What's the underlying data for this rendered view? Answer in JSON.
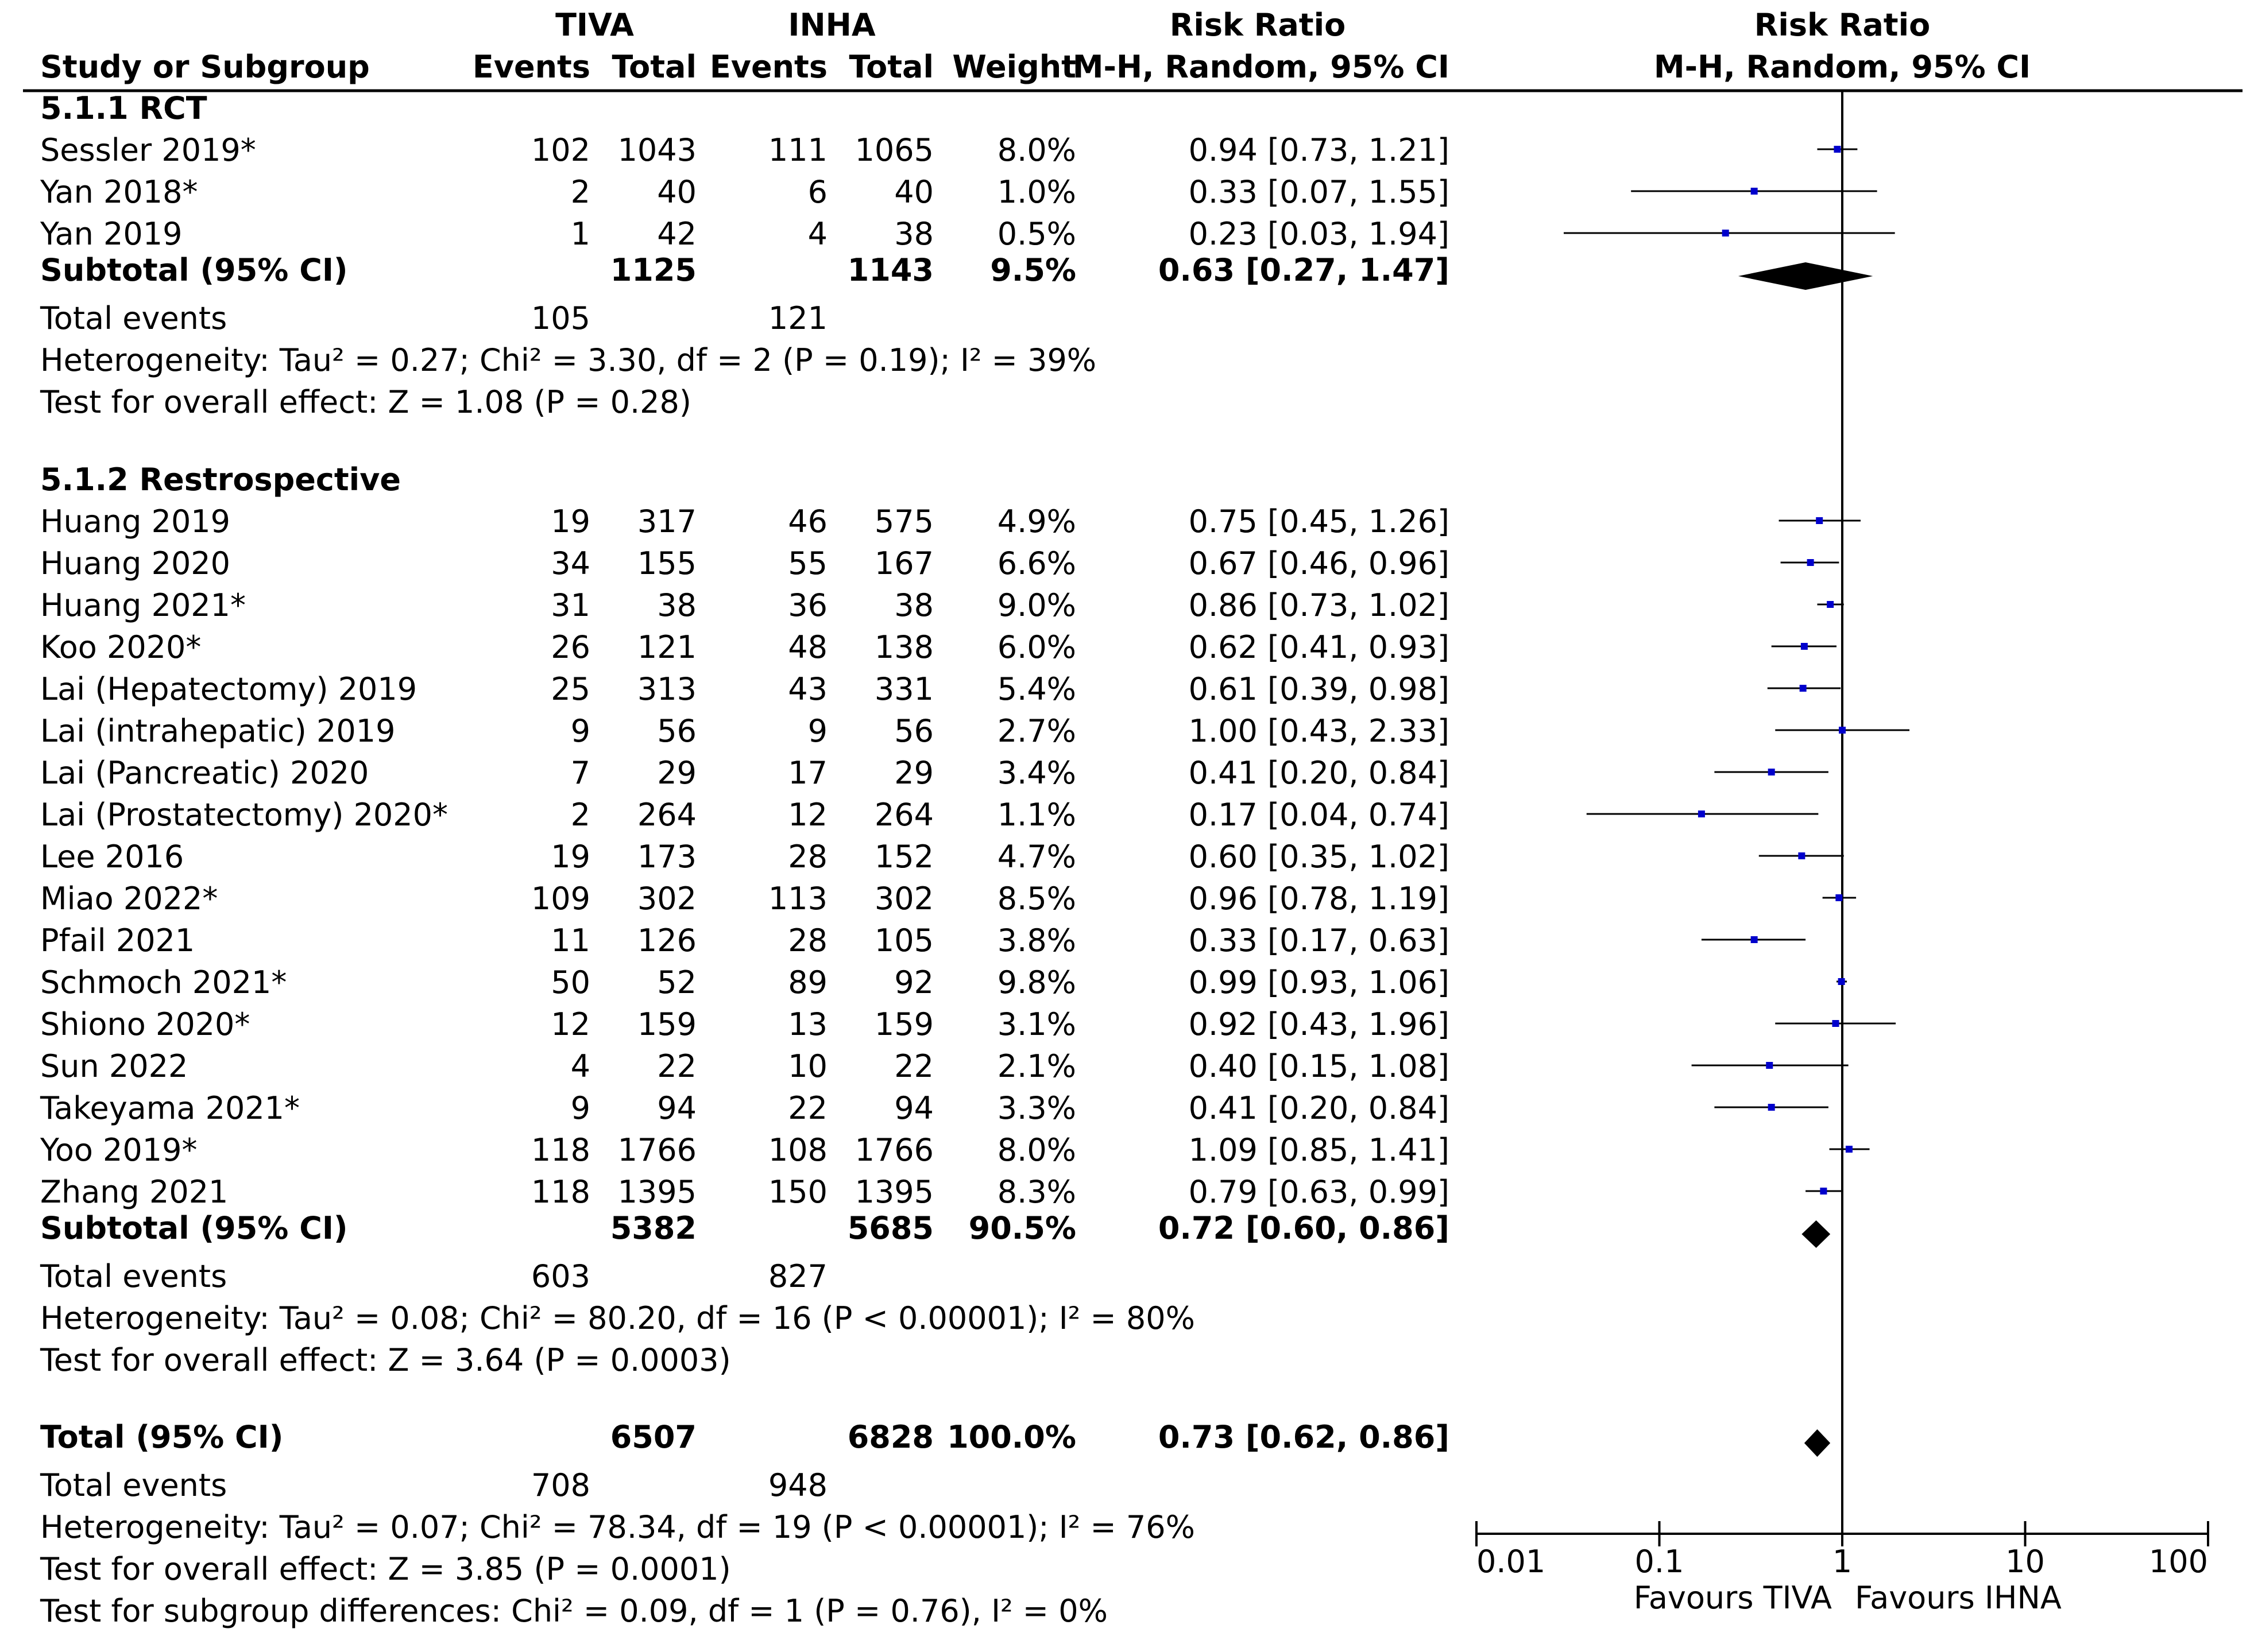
{
  "chart_data": {
    "type": "forest",
    "title": "",
    "header": {
      "group1": "TIVA",
      "group2": "INHA",
      "study": "Study or Subgroup",
      "events": "Events",
      "total": "Total",
      "weight": "Weight",
      "rr_title": "Risk Ratio",
      "rr_method": "M-H, Random, 95% CI"
    },
    "subgroups": [
      {
        "name": "5.1.1 RCT",
        "studies": [
          {
            "study": "Sessler 2019*",
            "e1": "102",
            "t1": "1043",
            "e2": "111",
            "t2": "1065",
            "weight": "8.0%",
            "ci_text": "0.94 [0.73, 1.21]",
            "rr": 0.94,
            "lo": 0.73,
            "hi": 1.21
          },
          {
            "study": "Yan 2018*",
            "e1": "2",
            "t1": "40",
            "e2": "6",
            "t2": "40",
            "weight": "1.0%",
            "ci_text": "0.33 [0.07, 1.55]",
            "rr": 0.33,
            "lo": 0.07,
            "hi": 1.55
          },
          {
            "study": "Yan 2019",
            "e1": "1",
            "t1": "42",
            "e2": "4",
            "t2": "38",
            "weight": "0.5%",
            "ci_text": "0.23 [0.03, 1.94]",
            "rr": 0.23,
            "lo": 0.03,
            "hi": 1.94
          }
        ],
        "subtotal": {
          "label": "Subtotal (95% CI)",
          "t1": "1125",
          "t2": "1143",
          "weight": "9.5%",
          "ci_text": "0.63 [0.27, 1.47]",
          "rr": 0.63,
          "lo": 0.27,
          "hi": 1.47
        },
        "total_events": {
          "label": "Total events",
          "e1": "105",
          "e2": "121"
        },
        "heterogeneity": "Heterogeneity: Tau² = 0.27; Chi² = 3.30, df = 2 (P = 0.19); I² = 39%",
        "overall": "Test for overall effect: Z = 1.08 (P = 0.28)"
      },
      {
        "name": "5.1.2 Restrospective",
        "studies": [
          {
            "study": "Huang 2019",
            "e1": "19",
            "t1": "317",
            "e2": "46",
            "t2": "575",
            "weight": "4.9%",
            "ci_text": "0.75 [0.45, 1.26]",
            "rr": 0.75,
            "lo": 0.45,
            "hi": 1.26
          },
          {
            "study": "Huang 2020",
            "e1": "34",
            "t1": "155",
            "e2": "55",
            "t2": "167",
            "weight": "6.6%",
            "ci_text": "0.67 [0.46, 0.96]",
            "rr": 0.67,
            "lo": 0.46,
            "hi": 0.96
          },
          {
            "study": "Huang 2021*",
            "e1": "31",
            "t1": "38",
            "e2": "36",
            "t2": "38",
            "weight": "9.0%",
            "ci_text": "0.86 [0.73, 1.02]",
            "rr": 0.86,
            "lo": 0.73,
            "hi": 1.02
          },
          {
            "study": "Koo 2020*",
            "e1": "26",
            "t1": "121",
            "e2": "48",
            "t2": "138",
            "weight": "6.0%",
            "ci_text": "0.62 [0.41, 0.93]",
            "rr": 0.62,
            "lo": 0.41,
            "hi": 0.93
          },
          {
            "study": "Lai (Hepatectomy) 2019",
            "e1": "25",
            "t1": "313",
            "e2": "43",
            "t2": "331",
            "weight": "5.4%",
            "ci_text": "0.61 [0.39, 0.98]",
            "rr": 0.61,
            "lo": 0.39,
            "hi": 0.98
          },
          {
            "study": "Lai (intrahepatic) 2019",
            "e1": "9",
            "t1": "56",
            "e2": "9",
            "t2": "56",
            "weight": "2.7%",
            "ci_text": "1.00 [0.43, 2.33]",
            "rr": 1.0,
            "lo": 0.43,
            "hi": 2.33
          },
          {
            "study": "Lai (Pancreatic) 2020",
            "e1": "7",
            "t1": "29",
            "e2": "17",
            "t2": "29",
            "weight": "3.4%",
            "ci_text": "0.41 [0.20, 0.84]",
            "rr": 0.41,
            "lo": 0.2,
            "hi": 0.84
          },
          {
            "study": "Lai (Prostatectomy) 2020*",
            "e1": "2",
            "t1": "264",
            "e2": "12",
            "t2": "264",
            "weight": "1.1%",
            "ci_text": "0.17 [0.04, 0.74]",
            "rr": 0.17,
            "lo": 0.04,
            "hi": 0.74
          },
          {
            "study": "Lee 2016",
            "e1": "19",
            "t1": "173",
            "e2": "28",
            "t2": "152",
            "weight": "4.7%",
            "ci_text": "0.60 [0.35, 1.02]",
            "rr": 0.6,
            "lo": 0.35,
            "hi": 1.02
          },
          {
            "study": "Miao 2022*",
            "e1": "109",
            "t1": "302",
            "e2": "113",
            "t2": "302",
            "weight": "8.5%",
            "ci_text": "0.96 [0.78, 1.19]",
            "rr": 0.96,
            "lo": 0.78,
            "hi": 1.19
          },
          {
            "study": "Pfail 2021",
            "e1": "11",
            "t1": "126",
            "e2": "28",
            "t2": "105",
            "weight": "3.8%",
            "ci_text": "0.33 [0.17, 0.63]",
            "rr": 0.33,
            "lo": 0.17,
            "hi": 0.63
          },
          {
            "study": "Schmoch 2021*",
            "e1": "50",
            "t1": "52",
            "e2": "89",
            "t2": "92",
            "weight": "9.8%",
            "ci_text": "0.99 [0.93, 1.06]",
            "rr": 0.99,
            "lo": 0.93,
            "hi": 1.06
          },
          {
            "study": "Shiono 2020*",
            "e1": "12",
            "t1": "159",
            "e2": "13",
            "t2": "159",
            "weight": "3.1%",
            "ci_text": "0.92 [0.43, 1.96]",
            "rr": 0.92,
            "lo": 0.43,
            "hi": 1.96
          },
          {
            "study": "Sun 2022",
            "e1": "4",
            "t1": "22",
            "e2": "10",
            "t2": "22",
            "weight": "2.1%",
            "ci_text": "0.40 [0.15, 1.08]",
            "rr": 0.4,
            "lo": 0.15,
            "hi": 1.08
          },
          {
            "study": "Takeyama 2021*",
            "e1": "9",
            "t1": "94",
            "e2": "22",
            "t2": "94",
            "weight": "3.3%",
            "ci_text": "0.41 [0.20, 0.84]",
            "rr": 0.41,
            "lo": 0.2,
            "hi": 0.84
          },
          {
            "study": "Yoo 2019*",
            "e1": "118",
            "t1": "1766",
            "e2": "108",
            "t2": "1766",
            "weight": "8.0%",
            "ci_text": "1.09 [0.85, 1.41]",
            "rr": 1.09,
            "lo": 0.85,
            "hi": 1.41
          },
          {
            "study": "Zhang 2021",
            "e1": "118",
            "t1": "1395",
            "e2": "150",
            "t2": "1395",
            "weight": "8.3%",
            "ci_text": "0.79 [0.63, 0.99]",
            "rr": 0.79,
            "lo": 0.63,
            "hi": 0.99
          }
        ],
        "subtotal": {
          "label": "Subtotal (95% CI)",
          "t1": "5382",
          "t2": "5685",
          "weight": "90.5%",
          "ci_text": "0.72 [0.60, 0.86]",
          "rr": 0.72,
          "lo": 0.6,
          "hi": 0.86
        },
        "total_events": {
          "label": "Total events",
          "e1": "603",
          "e2": "827"
        },
        "heterogeneity": "Heterogeneity: Tau² = 0.08; Chi² = 80.20, df = 16 (P < 0.00001); I² = 80%",
        "overall": "Test for overall effect: Z = 3.64 (P = 0.0003)"
      }
    ],
    "total": {
      "label": "Total (95% CI)",
      "t1": "6507",
      "t2": "6828",
      "weight": "100.0%",
      "ci_text": "0.73 [0.62, 0.86]",
      "rr": 0.73,
      "lo": 0.62,
      "hi": 0.86
    },
    "total_events": {
      "label": "Total events",
      "e1": "708",
      "e2": "948"
    },
    "heterogeneity": "Heterogeneity: Tau² = 0.07; Chi² = 78.34, df = 19 (P < 0.00001); I² = 76%",
    "overall": "Test for overall effect: Z = 3.85 (P = 0.0001)",
    "subgroup_diff": "Test for subgroup differences: Chi² = 0.09, df = 1 (P = 0.76), I² = 0%",
    "axis": {
      "scale": "log",
      "xlim": [
        0.01,
        100
      ],
      "ticks": [
        0.01,
        0.1,
        1,
        10,
        100
      ],
      "tick_labels": [
        "0.01",
        "0.1",
        "1",
        "10",
        "100"
      ],
      "favours_left": "Favours TIVA",
      "favours_right": "Favours IHNA"
    },
    "colors": {
      "study_marker": "#0000cc",
      "diamond": "#000000",
      "line": "#000000"
    }
  }
}
